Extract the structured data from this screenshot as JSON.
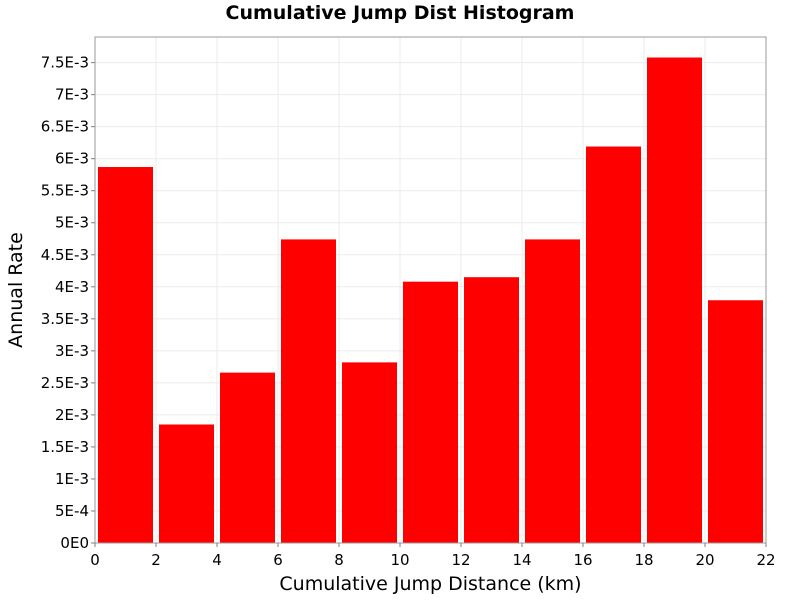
{
  "chart_data": {
    "type": "bar",
    "title": "Cumulative Jump Dist Histogram",
    "xlabel": "Cumulative Jump Distance (km)",
    "ylabel": "Annual Rate",
    "xlim": [
      0,
      22
    ],
    "ylim": [
      0,
      0.0079
    ],
    "grid": true,
    "bar_color": "#ff0000",
    "x_ticks": [
      0,
      2,
      4,
      6,
      8,
      10,
      12,
      14,
      16,
      18,
      20,
      22
    ],
    "x_tick_labels": [
      "0",
      "2",
      "4",
      "6",
      "8",
      "10",
      "12",
      "14",
      "16",
      "18",
      "20",
      "22"
    ],
    "y_ticks": [
      0,
      0.0005,
      0.001,
      0.0015,
      0.002,
      0.0025,
      0.003,
      0.0035,
      0.004,
      0.0045,
      0.005,
      0.0055,
      0.006,
      0.0065,
      0.007,
      0.0075
    ],
    "y_tick_labels": [
      "0E0",
      "5E-4",
      "1E-3",
      "1.5E-3",
      "2E-3",
      "2.5E-3",
      "3E-3",
      "3.5E-3",
      "4E-3",
      "4.5E-3",
      "5E-3",
      "5.5E-3",
      "6E-3",
      "6.5E-3",
      "7E-3",
      "7.5E-3"
    ],
    "bins": [
      {
        "x0": 0,
        "x1": 2,
        "value": 0.00587
      },
      {
        "x0": 2,
        "x1": 4,
        "value": 0.00185
      },
      {
        "x0": 4,
        "x1": 6,
        "value": 0.00266
      },
      {
        "x0": 6,
        "x1": 8,
        "value": 0.00474
      },
      {
        "x0": 8,
        "x1": 10,
        "value": 0.00282
      },
      {
        "x0": 10,
        "x1": 12,
        "value": 0.00408
      },
      {
        "x0": 12,
        "x1": 14,
        "value": 0.00415
      },
      {
        "x0": 14,
        "x1": 16,
        "value": 0.00474
      },
      {
        "x0": 16,
        "x1": 18,
        "value": 0.00619
      },
      {
        "x0": 18,
        "x1": 20,
        "value": 0.00758
      },
      {
        "x0": 20,
        "x1": 22,
        "value": 0.00379
      }
    ]
  }
}
